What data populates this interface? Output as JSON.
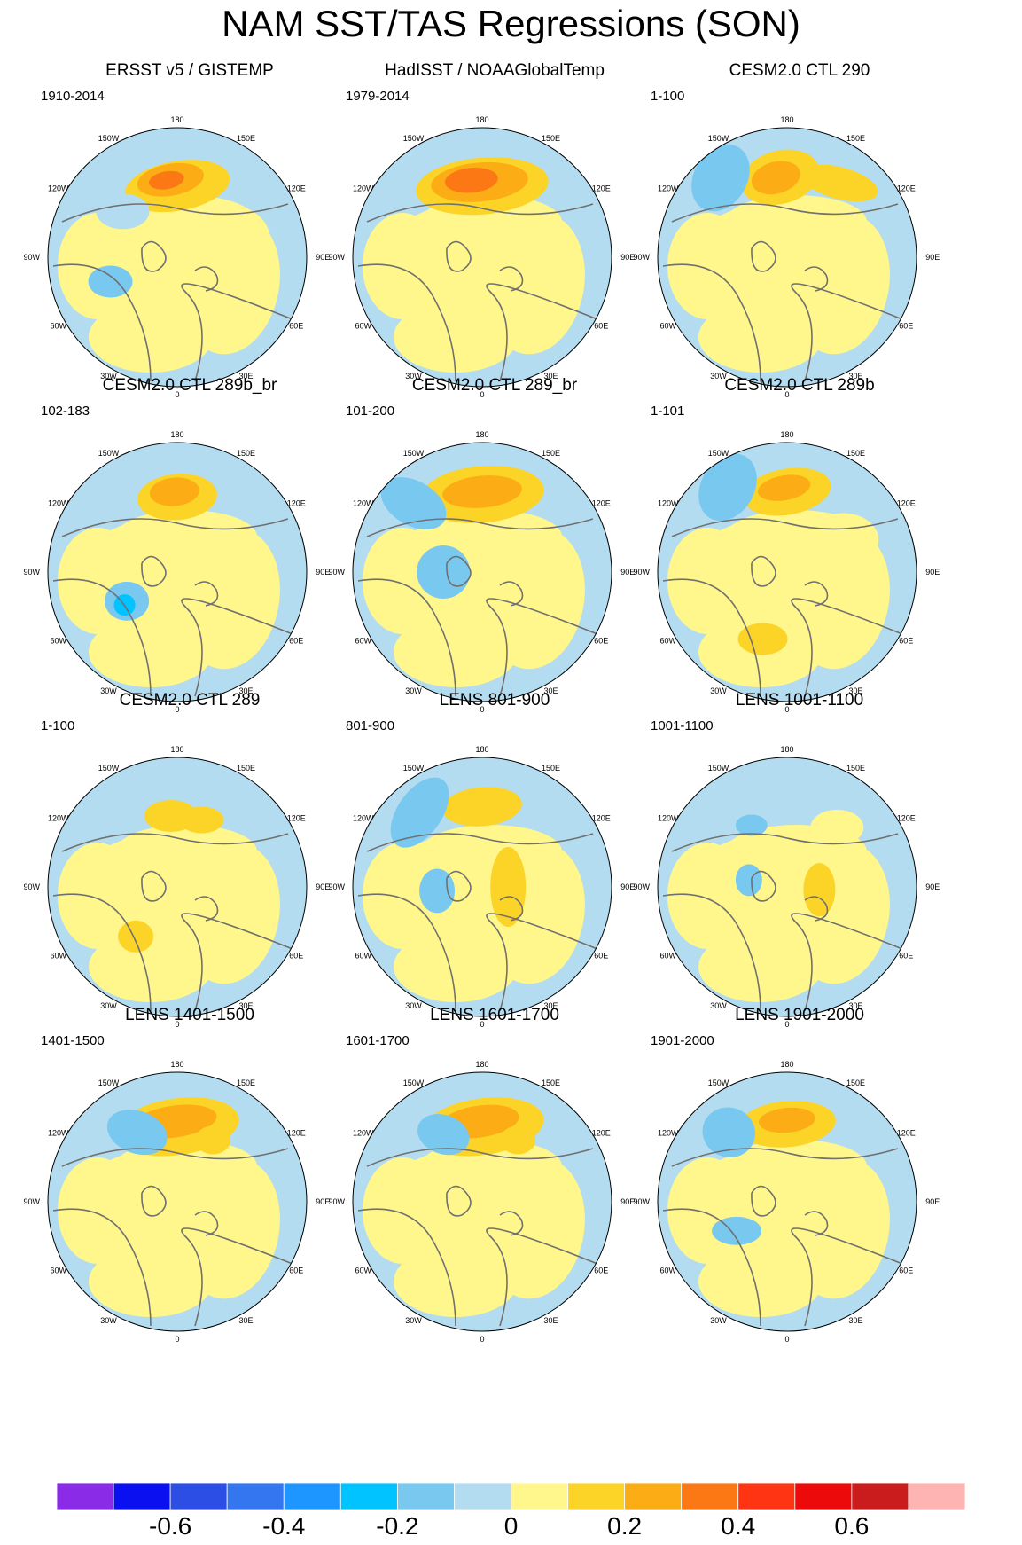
{
  "title": "NAM SST/TAS Regressions (SON)",
  "longitude_labels": [
    "180",
    "150W",
    "150E",
    "120W",
    "120E",
    "90W",
    "90E",
    "60W",
    "60E",
    "30W",
    "30E",
    "0"
  ],
  "panels": [
    {
      "title": "ERSST v5 / GISTEMP",
      "period": "1910-2014"
    },
    {
      "title": "HadISST / NOAAGlobalTemp",
      "period": "1979-2014"
    },
    {
      "title": "CESM2.0 CTL 290",
      "period": "1-100"
    },
    {
      "title": "CESM2.0 CTL 289b_br",
      "period": "102-183"
    },
    {
      "title": "CESM2.0 CTL 289_br",
      "period": "101-200"
    },
    {
      "title": "CESM2.0 CTL 289b",
      "period": "1-101"
    },
    {
      "title": "CESM2.0 CTL 289",
      "period": "1-100"
    },
    {
      "title": "LENS 801-900",
      "period": "801-900"
    },
    {
      "title": "LENS 1001-1100",
      "period": "1001-1100"
    },
    {
      "title": "LENS 1401-1500",
      "period": "1401-1500"
    },
    {
      "title": "LENS 1601-1700",
      "period": "1601-1700"
    },
    {
      "title": "LENS 1901-2000",
      "period": "1901-2000"
    }
  ],
  "colorbar": {
    "colors": [
      "#8a2be8",
      "#0a10f0",
      "#2c4ee4",
      "#3476f0",
      "#1e96ff",
      "#00c3ff",
      "#78c8f0",
      "#b4dcf0",
      "#fff68c",
      "#fcd427",
      "#fcac14",
      "#fc7814",
      "#ff3412",
      "#ec0a0a",
      "#ca1c1c",
      "#ffb4b4"
    ],
    "labels": [
      "-0.6",
      "-0.4",
      "-0.2",
      "0",
      "0.2",
      "0.4",
      "0.6"
    ],
    "label_values": [
      -0.6,
      -0.4,
      -0.2,
      0,
      0.2,
      0.4,
      0.6
    ],
    "min": -0.8,
    "max": 0.8
  }
}
